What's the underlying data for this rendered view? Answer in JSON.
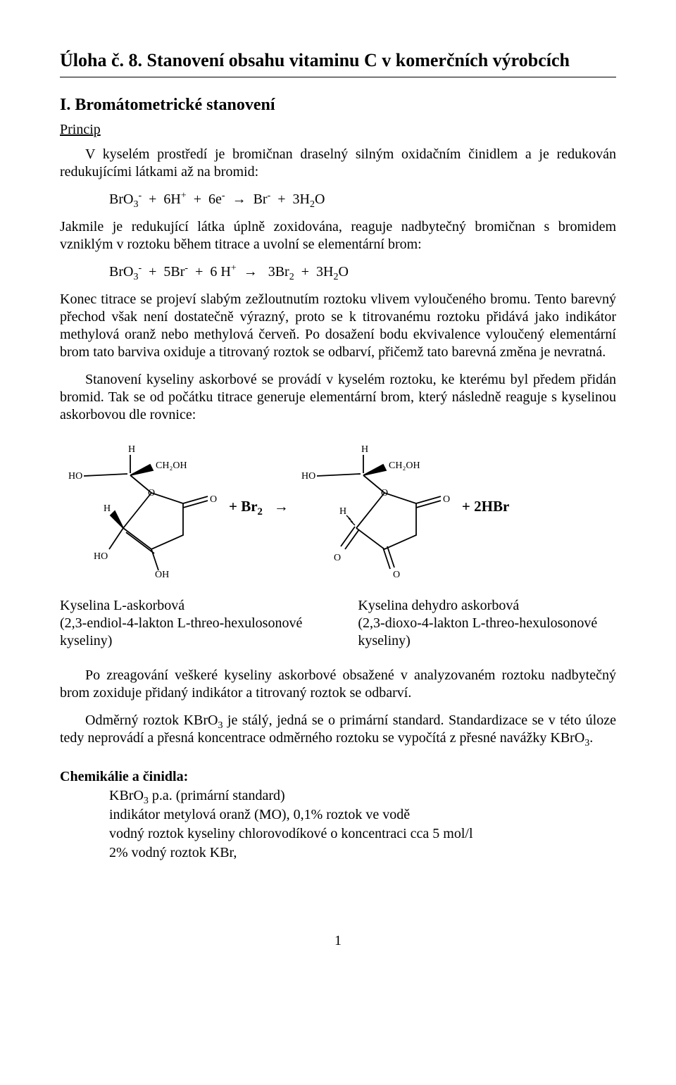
{
  "title": "Úloha č. 8. Stanovení obsahu vitaminu C v komerčních výrobcích",
  "section1": {
    "heading": "I. Bromátometrické stanovení",
    "principle_label": "Princip",
    "para1": "V kyselém prostředí je bromičnan draselný silným oxidačním činidlem a je redukován redukujícími látkami až na bromid:",
    "eq1_html": "BrO<sub>3</sub><sup>-</sup>&nbsp;&nbsp;+&nbsp;&nbsp;6H<sup>+</sup>&nbsp;&nbsp;+&nbsp;&nbsp;6e<sup>-</sup>&nbsp;&nbsp;→&nbsp;&nbsp;Br<sup>-</sup>&nbsp;&nbsp;+&nbsp;&nbsp;3H<sub>2</sub>O",
    "para2": "Jakmile je redukující látka úplně zoxidována, reaguje nadbytečný bromičnan s bromidem vzniklým v roztoku během titrace a uvolní se elementární brom:",
    "eq2_html": "BrO<sub>3</sub><sup>-</sup>&nbsp;&nbsp;+&nbsp;&nbsp;5Br<sup>-</sup>&nbsp;&nbsp;+&nbsp;&nbsp;6 H<sup>+</sup>&nbsp;&nbsp;→&nbsp;&nbsp;&nbsp;3Br<sub>2</sub>&nbsp;&nbsp;+&nbsp;&nbsp;3H<sub>2</sub>O",
    "para3": "Konec titrace se projeví slabým zežloutnutím roztoku vlivem vyloučeného bromu. Tento barevný přechod však není dostatečně výrazný, proto se k titrovanému roztoku přidává jako indikátor methylová oranž nebo methylová červeň. Po dosažení bodu ekvivalence vyloučený elementární brom tato barviva oxiduje a titrovaný roztok se odbarví, přičemž tato barevná změna je nevratná.",
    "para4": "Stanovení kyseliny askorbové se provádí v kyselém roztoku, ke kterému byl předem přidán bromid. Tak se od počátku titrace generuje elementární brom, který následně reaguje s kyselinou askorbovou dle rovnice:"
  },
  "reaction": {
    "plus_br2": "+ Br",
    "plus_br2_sub": "2",
    "arrow": "→",
    "plus_hbr": "+ 2HBr"
  },
  "compounds": {
    "left": {
      "name": "Kyselina L-askorbová",
      "iupac": "(2,3-endiol-4-lakton L-threo-hexulosonové kyseliny)"
    },
    "right": {
      "name": "Kyselina dehydro askorbová",
      "iupac": "(2,3-dioxo-4-lakton L-threo-hexulosonové kyseliny)"
    }
  },
  "para5": "Po zreagování veškeré kyseliny askorbové obsažené v analyzovaném roztoku nadbytečný brom zoxiduje přidaný indikátor a titrovaný roztok se odbarví.",
  "para6_html": "Odměrný roztok KBrO<sub>3</sub> je stálý, jedná se o primární standard. Standardizace se v této úloze tedy neprovádí a přesná koncentrace odměrného roztoku se vypočítá z přesné navážky KBrO<sub>3</sub>.",
  "chemicals": {
    "heading": "Chemikálie a činidla:",
    "items_html": [
      "KBrO<sub>3</sub> p.a. (primární standard)",
      "indikátor metylová oranž (MO), 0,1% roztok ve vodě",
      "vodný roztok kyseliny chlorovodíkové o koncentraci cca 5 mol/l",
      "2% vodný roztok KBr,"
    ]
  },
  "page_number": "1"
}
